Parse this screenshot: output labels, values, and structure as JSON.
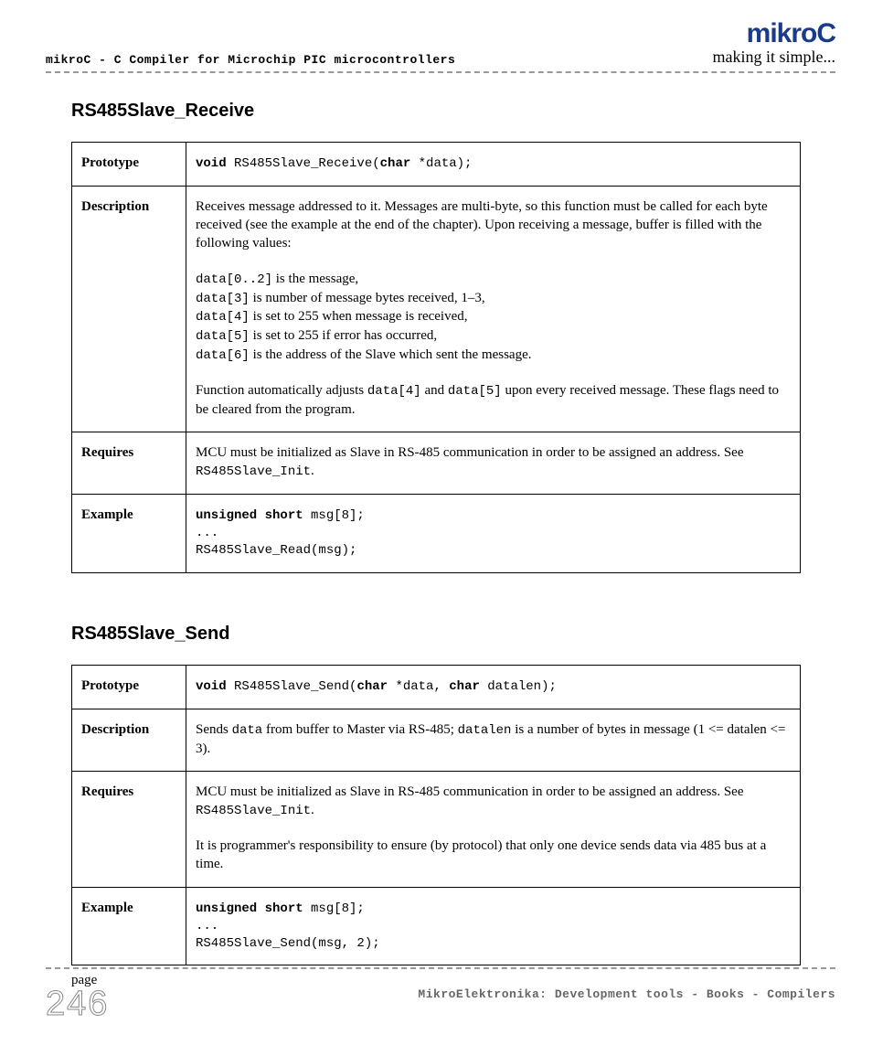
{
  "header": {
    "left_text": "mikroC - C Compiler for Microchip PIC microcontrollers",
    "brand": "mikroC",
    "tagline": "making it simple...",
    "brand_color": "#1a3a8a"
  },
  "sections": [
    {
      "title": "RS485Slave_Receive",
      "rows": {
        "prototype_label": "Prototype",
        "prototype_pre": "void",
        "prototype_mid": " RS485Slave_Receive(",
        "prototype_kw": "char",
        "prototype_post": " *data);",
        "description_label": "Description",
        "desc_intro": "Receives message addressed to it. Messages are multi-byte, so this function must be called for each byte received (see the example at the end of the chapter). Upon receiving a message, buffer is filled with the following values:",
        "desc_lines": [
          {
            "code": "data[0..2]",
            "text": " is the message,"
          },
          {
            "code": "data[3]",
            "text": " is number of message bytes received, 1–3,"
          },
          {
            "code": "data[4]",
            "text": " is set to 255 when message is received,"
          },
          {
            "code": "data[5]",
            "text": " is set to 255 if error has occurred,"
          },
          {
            "code": "data[6]",
            "text": " is the address of the Slave which sent the message."
          }
        ],
        "desc_tail_pre": "Function automatically adjusts ",
        "desc_tail_c1": "data[4]",
        "desc_tail_mid": " and ",
        "desc_tail_c2": "data[5]",
        "desc_tail_post": " upon every received message. These flags need to be cleared from the program.",
        "requires_label": "Requires",
        "requires_pre": "MCU must be initialized as Slave in RS-485 communication in order to be assigned an address. See ",
        "requires_code": "RS485Slave_Init",
        "requires_post": ".",
        "example_label": "Example",
        "example_l1a": "unsigned short",
        "example_l1b": " msg[8];",
        "example_l2": "...",
        "example_l3": "RS485Slave_Read(msg);"
      }
    },
    {
      "title": "RS485Slave_Send",
      "rows": {
        "prototype_label": "Prototype",
        "prototype_pre": "void",
        "prototype_mid": " RS485Slave_Send(",
        "prototype_kw1": "char",
        "prototype_mid2": " *data, ",
        "prototype_kw2": "char",
        "prototype_post": " datalen);",
        "description_label": "Description",
        "desc_pre": "Sends ",
        "desc_c1": "data",
        "desc_mid": " from buffer to Master via RS-485; ",
        "desc_c2": "datalen",
        "desc_post": " is a number of bytes in message (1 <= datalen <= 3).",
        "requires_label": "Requires",
        "requires_pre": "MCU must be initialized as Slave in RS-485 communication in order to be assigned an address. See ",
        "requires_code": "RS485Slave_Init",
        "requires_post": ".",
        "requires_p2": "It is programmer's responsibility to ensure (by protocol) that only one device sends data via 485 bus at a time.",
        "example_label": "Example",
        "example_l1a": "unsigned short",
        "example_l1b": " msg[8];",
        "example_l2": "...",
        "example_l3": "RS485Slave_Send(msg, 2);"
      }
    }
  ],
  "footer": {
    "page_label": "page",
    "page_number": "246",
    "right_text": "MikroElektronika: Development tools - Books - Compilers"
  }
}
